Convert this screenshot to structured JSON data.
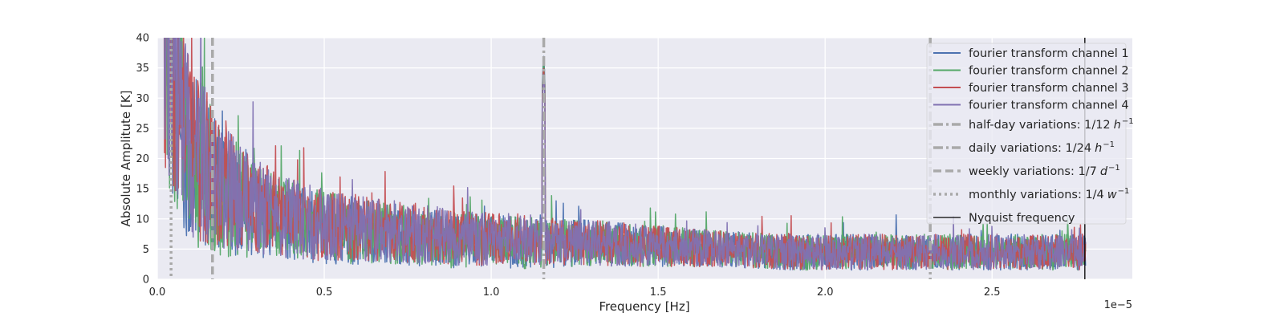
{
  "chart_data": {
    "type": "line",
    "xlabel": "Frequency [Hz]",
    "ylabel": "Absolute Amplitute [K]",
    "x_offset_label": "1e−5",
    "xlim": [
      0,
      2.92
    ],
    "ylim": [
      0,
      40
    ],
    "x_ticks": [
      0.0,
      0.5,
      1.0,
      1.5,
      2.0,
      2.5
    ],
    "x_tick_labels": [
      "0.0",
      "0.5",
      "1.0",
      "1.5",
      "2.0",
      "2.5"
    ],
    "y_ticks": [
      0,
      5,
      10,
      15,
      20,
      25,
      30,
      35,
      40
    ],
    "y_tick_labels": [
      "0",
      "5",
      "10",
      "15",
      "20",
      "25",
      "30",
      "35",
      "40"
    ],
    "grid": true,
    "legend_position": "top-right",
    "series": [
      {
        "name": "fourier transform channel 1",
        "color": "#4c72b0",
        "envelope": {
          "x": [
            0.02,
            0.1,
            0.2,
            0.3,
            0.4,
            0.5,
            0.7,
            0.9,
            1.1,
            1.3,
            1.5,
            1.7,
            1.9,
            2.1,
            2.3,
            2.5,
            2.7,
            2.78
          ],
          "mean": [
            40,
            20,
            14,
            11,
            9.5,
            8.5,
            7.5,
            6.5,
            6,
            6,
            5.5,
            5,
            4.5,
            4.5,
            4.5,
            4.5,
            4.5,
            4.5
          ],
          "spread": [
            25,
            18,
            12,
            9,
            8,
            7,
            6,
            5.5,
            5,
            4.5,
            4,
            3.5,
            3.5,
            3.5,
            3.5,
            3.5,
            3.5,
            3.5
          ]
        },
        "peaks": [
          {
            "x": 1.157,
            "y": 38
          }
        ]
      },
      {
        "name": "fourier transform channel 2",
        "color": "#55a868",
        "envelope": {
          "x": [
            0.02,
            0.1,
            0.2,
            0.3,
            0.4,
            0.5,
            0.7,
            0.9,
            1.1,
            1.3,
            1.5,
            1.7,
            1.9,
            2.1,
            2.3,
            2.5,
            2.7,
            2.78
          ],
          "mean": [
            38,
            21,
            14,
            11,
            9.5,
            8.5,
            7.5,
            6.5,
            6,
            6,
            5.5,
            5,
            4.5,
            4.5,
            4.5,
            4.5,
            4.5,
            4.5
          ],
          "spread": [
            25,
            18,
            12,
            9,
            8,
            7,
            6,
            5.5,
            5,
            4.5,
            4,
            3.5,
            3.5,
            3.5,
            3.5,
            3.5,
            3.5,
            3.5
          ]
        },
        "peaks": [
          {
            "x": 1.157,
            "y": 37
          }
        ]
      },
      {
        "name": "fourier transform channel 3",
        "color": "#c44e52",
        "envelope": {
          "x": [
            0.02,
            0.1,
            0.2,
            0.3,
            0.4,
            0.5,
            0.7,
            0.9,
            1.1,
            1.3,
            1.5,
            1.7,
            1.9,
            2.1,
            2.3,
            2.5,
            2.7,
            2.78
          ],
          "mean": [
            40,
            22,
            15,
            12,
            10,
            9,
            8,
            7,
            6.5,
            6,
            5.5,
            5,
            4.5,
            4.5,
            4.5,
            4.5,
            4.5,
            4.5
          ],
          "spread": [
            25,
            18,
            12,
            9,
            8,
            7,
            6,
            5.5,
            5,
            4.5,
            4,
            3.5,
            3.5,
            3.5,
            3.5,
            3.5,
            3.5,
            3.5
          ]
        },
        "peaks": [
          {
            "x": 1.157,
            "y": 36
          }
        ]
      },
      {
        "name": "fourier transform channel 4",
        "color": "#8172b2",
        "envelope": {
          "x": [
            0.02,
            0.1,
            0.2,
            0.3,
            0.4,
            0.5,
            0.7,
            0.9,
            1.1,
            1.3,
            1.5,
            1.7,
            1.9,
            2.1,
            2.3,
            2.5,
            2.7,
            2.78
          ],
          "mean": [
            40,
            22,
            15,
            12,
            10,
            9,
            8,
            7,
            6.5,
            6,
            5.5,
            5,
            4.5,
            4.5,
            4.5,
            4.5,
            4.5,
            4.5
          ],
          "spread": [
            25,
            18,
            12,
            9,
            8,
            7,
            6,
            5.5,
            5,
            4.5,
            4,
            3.5,
            3.5,
            3.5,
            3.5,
            3.5,
            3.5,
            3.5
          ]
        },
        "peaks": [
          {
            "x": 1.157,
            "y": 35
          }
        ]
      }
    ],
    "reference_lines": [
      {
        "name": "half-day variations: 1/12",
        "unit": "h",
        "exponent": "−1",
        "x": 2.3148,
        "style": "dashdot",
        "color": "#a9a9a9"
      },
      {
        "name": "daily variations: 1/24",
        "unit": "h",
        "exponent": "−1",
        "x": 1.1574,
        "style": "dashdot",
        "color": "#a9a9a9"
      },
      {
        "name": "weekly variations: 1/7",
        "unit": "d",
        "exponent": "−1",
        "x": 0.1653,
        "style": "dashed",
        "color": "#a9a9a9"
      },
      {
        "name": "monthly variations: 1/4",
        "unit": "w",
        "exponent": "−1",
        "x": 0.0413,
        "style": "dotted",
        "color": "#a9a9a9"
      },
      {
        "name": "Nyquist frequency",
        "unit": "",
        "exponent": "",
        "x": 2.7778,
        "style": "solid",
        "color": "#000000"
      }
    ]
  }
}
